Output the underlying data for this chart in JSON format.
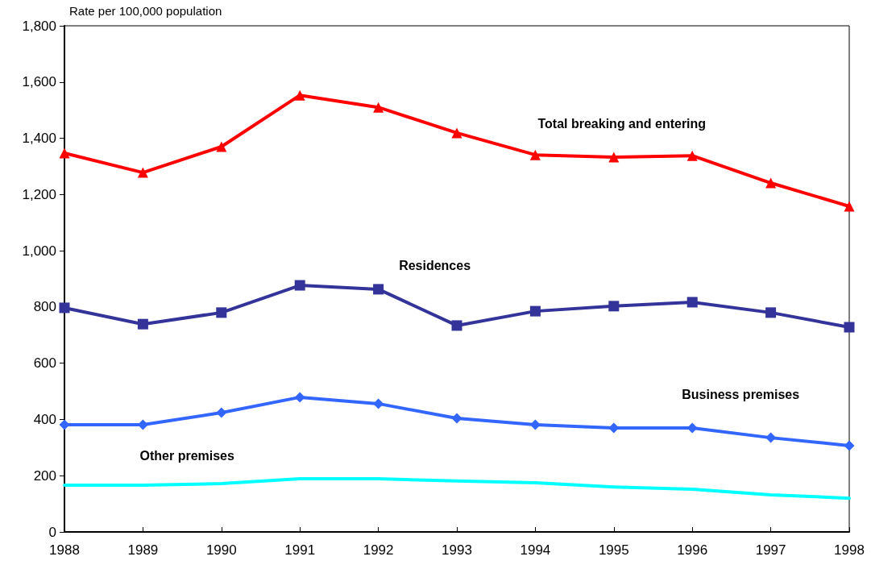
{
  "chart_data": {
    "type": "line",
    "ylabel": "Rate per 100,000 population",
    "categories": [
      "1988",
      "1989",
      "1990",
      "1991",
      "1992",
      "1993",
      "1994",
      "1995",
      "1996",
      "1997",
      "1998"
    ],
    "series": [
      {
        "name": "Total breaking and entering",
        "color": "#ff0000",
        "marker": "triangle",
        "values": [
          1347,
          1278,
          1370,
          1553,
          1510,
          1419,
          1341,
          1333,
          1338,
          1241,
          1158
        ]
      },
      {
        "name": "Residences",
        "color": "#333399",
        "marker": "square",
        "values": [
          797,
          739,
          780,
          877,
          863,
          734,
          785,
          803,
          817,
          780,
          728
        ]
      },
      {
        "name": "Business premises",
        "color": "#3366ff",
        "marker": "diamond",
        "values": [
          381,
          381,
          424,
          479,
          456,
          404,
          381,
          370,
          370,
          335,
          307
        ]
      },
      {
        "name": "Other premises",
        "color": "#00ffff",
        "marker": "none",
        "values": [
          166,
          166,
          172,
          189,
          189,
          181,
          175,
          160,
          152,
          132,
          120
        ]
      }
    ],
    "ylim": [
      0,
      1800
    ],
    "yticks": [
      0,
      200,
      400,
      600,
      800,
      {
        "value": 1000,
        "label": "1,000"
      },
      {
        "value": 1200,
        "label": "1,200"
      },
      {
        "value": 1400,
        "label": "1,400"
      },
      {
        "value": 1600,
        "label": "1,600"
      },
      {
        "value": 1800,
        "label": "1,800"
      }
    ],
    "grid": false,
    "legend": false
  }
}
